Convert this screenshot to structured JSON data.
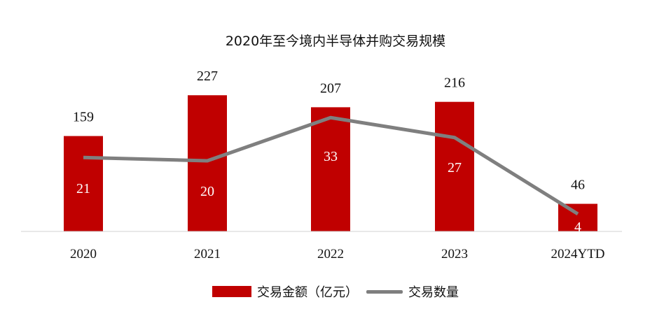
{
  "chart_data": {
    "type": "bar",
    "title": "2020年至今境内半导体并购交易规模",
    "categories": [
      "2020",
      "2021",
      "2022",
      "2023",
      "2024YTD"
    ],
    "series": [
      {
        "name": "交易金额（亿元）",
        "type": "bar",
        "values": [
          159,
          227,
          207,
          216,
          46
        ],
        "color": "#c00000"
      },
      {
        "name": "交易数量",
        "type": "line",
        "values": [
          21,
          20,
          33,
          27,
          4
        ],
        "color": "#7f7f7f"
      }
    ],
    "ylim": [
      0,
      250
    ],
    "grid": false,
    "legend": "bottom"
  }
}
